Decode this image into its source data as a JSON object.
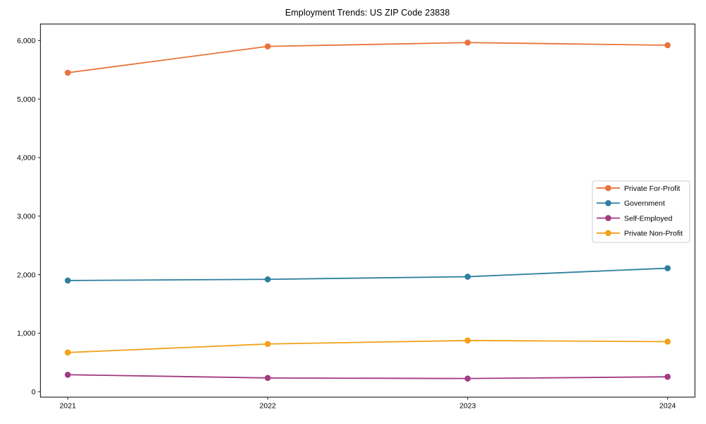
{
  "figure": {
    "background_color": "#ffffff",
    "text_color": "#000000"
  },
  "chart_data": {
    "type": "line",
    "title": "Employment Trends: US ZIP Code 23838",
    "xlabel": "",
    "ylabel": "",
    "x": [
      2021,
      2022,
      2023,
      2024
    ],
    "x_tick_labels": [
      "2021",
      "2022",
      "2023",
      "2024"
    ],
    "y_ticks": [
      0,
      1000,
      2000,
      3000,
      4000,
      5000,
      6000
    ],
    "y_tick_labels": [
      "0",
      "1,000",
      "2,000",
      "3,000",
      "4,000",
      "5,000",
      "6,000"
    ],
    "ylim": [
      -93,
      6282
    ],
    "grid": false,
    "legend_position": "center-right",
    "marker": "circle",
    "series": [
      {
        "name": "Private For-Profit",
        "color": "#e8743b",
        "values": [
          5450,
          5900,
          5965,
          5920
        ]
      },
      {
        "name": "Government",
        "color": "#2d7f9d",
        "values": [
          1900,
          1920,
          1965,
          2110
        ]
      },
      {
        "name": "Self-Employed",
        "color": "#a23b82",
        "values": [
          290,
          235,
          225,
          255
        ]
      },
      {
        "name": "Private Non-Profit",
        "color": "#f2a11a",
        "values": [
          670,
          815,
          875,
          855
        ]
      }
    ]
  }
}
